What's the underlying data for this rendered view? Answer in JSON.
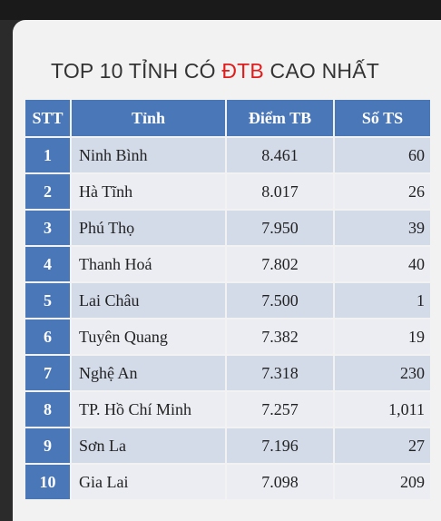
{
  "title": {
    "prefix": "TOP 10 TỈNH CÓ ",
    "accent": "ĐTB",
    "suffix": " CAO NHẤT"
  },
  "colors": {
    "header_bg": "#4a77b8",
    "accent": "#e21b1b",
    "row_odd": "#d3dae8",
    "row_even": "#ebedf2"
  },
  "table": {
    "headers": [
      "STT",
      "Tỉnh",
      "Điểm TB",
      "Số TS"
    ],
    "rows": [
      {
        "stt": "1",
        "province": "Ninh Bình",
        "score": "8.461",
        "count": "60"
      },
      {
        "stt": "2",
        "province": "Hà Tĩnh",
        "score": "8.017",
        "count": "26"
      },
      {
        "stt": "3",
        "province": "Phú Thọ",
        "score": "7.950",
        "count": "39"
      },
      {
        "stt": "4",
        "province": "Thanh Hoá",
        "score": "7.802",
        "count": "40"
      },
      {
        "stt": "5",
        "province": "Lai Châu",
        "score": "7.500",
        "count": "1"
      },
      {
        "stt": "6",
        "province": "Tuyên Quang",
        "score": "7.382",
        "count": "19"
      },
      {
        "stt": "7",
        "province": "Nghệ An",
        "score": "7.318",
        "count": "230"
      },
      {
        "stt": "8",
        "province": "TP. Hồ Chí Minh",
        "score": "7.257",
        "count": "1,011"
      },
      {
        "stt": "9",
        "province": "Sơn La",
        "score": "7.196",
        "count": "27"
      },
      {
        "stt": "10",
        "province": "Gia Lai",
        "score": "7.098",
        "count": "209"
      }
    ]
  }
}
